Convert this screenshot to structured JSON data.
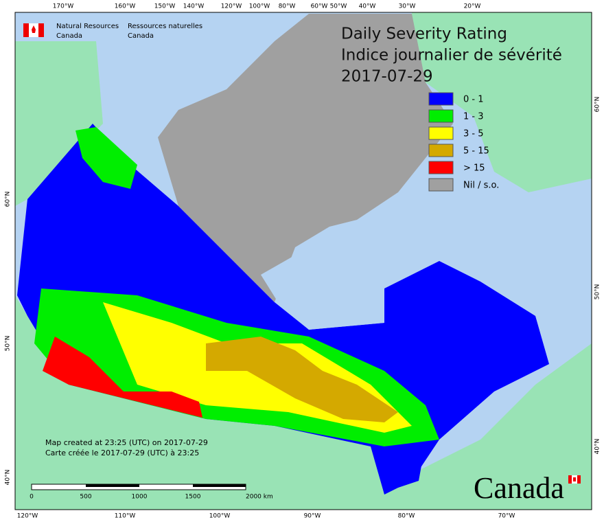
{
  "header": {
    "agency_en": [
      "Natural Resources",
      "Canada"
    ],
    "agency_fr": [
      "Ressources naturelles",
      "Canada"
    ]
  },
  "title": [
    "Daily Severity Rating",
    "Indice journalier de sévérité",
    "2017-07-29"
  ],
  "legend": [
    {
      "label": "0 - 1",
      "color": "#0000ff"
    },
    {
      "label": "1 - 3",
      "color": "#00ee00"
    },
    {
      "label": "3 - 5",
      "color": "#ffff00"
    },
    {
      "label": "5 - 15",
      "color": "#d4a900"
    },
    {
      "label": "> 15",
      "color": "#ff0000"
    },
    {
      "label": "Nil / s.o.",
      "color": "#a0a0a0"
    }
  ],
  "top_longitudes": [
    "170°W",
    "160°W",
    "150°W",
    "140°W",
    "120°W",
    "100°W",
    "80°W",
    "60°W",
    "50°W",
    "40°W",
    "30°W",
    "20°W"
  ],
  "bottom_longitudes": [
    "120°W",
    "110°W",
    "100°W",
    "90°W",
    "80°W",
    "70°W"
  ],
  "left_latitudes": [
    "60°N",
    "50°N",
    "40°N"
  ],
  "right_latitudes": [
    "60°N",
    "50°N",
    "40°N"
  ],
  "credits": [
    "Map created at 23:25 (UTC) on 2017-07-29",
    "Carte créée le 2017-07-29 (UTC) à 23:25"
  ],
  "scale_labels": [
    "0",
    "500",
    "1000",
    "1500",
    "2000 km"
  ],
  "wordmark": "Canada"
}
